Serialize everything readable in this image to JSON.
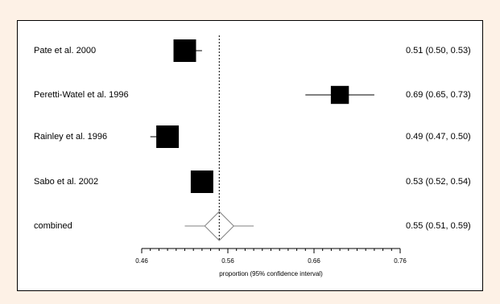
{
  "chart_data": {
    "type": "forest",
    "xlabel": "proportion (95% confidence interval)",
    "xlim": [
      0.46,
      0.76
    ],
    "xticks": [
      "0.46",
      "0.56",
      "0.66",
      "0.76"
    ],
    "reference_line": 0.55,
    "studies": [
      {
        "label": "Pate et al. 2000",
        "estimate": 0.51,
        "lower": 0.5,
        "upper": 0.53,
        "ci_text": "0.51 (0.50, 0.53)",
        "weight": 1.0
      },
      {
        "label": "Peretti-Watel et al. 1996",
        "estimate": 0.69,
        "lower": 0.65,
        "upper": 0.73,
        "ci_text": "0.69 (0.65, 0.73)",
        "weight": 0.8
      },
      {
        "label": "Rainley et al. 1996",
        "estimate": 0.49,
        "lower": 0.47,
        "upper": 0.5,
        "ci_text": "0.49 (0.47, 0.50)",
        "weight": 1.0
      },
      {
        "label": "Sabo et al. 2002",
        "estimate": 0.53,
        "lower": 0.52,
        "upper": 0.54,
        "ci_text": "0.53 (0.52, 0.54)",
        "weight": 1.0
      }
    ],
    "combined": {
      "label": "combined",
      "estimate": 0.55,
      "lower": 0.51,
      "upper": 0.59,
      "ci_text": "0.55 (0.51, 0.59)"
    },
    "colors": {
      "marker": "#000000",
      "diamond": "#808080",
      "background": "#fdf1e6"
    }
  }
}
